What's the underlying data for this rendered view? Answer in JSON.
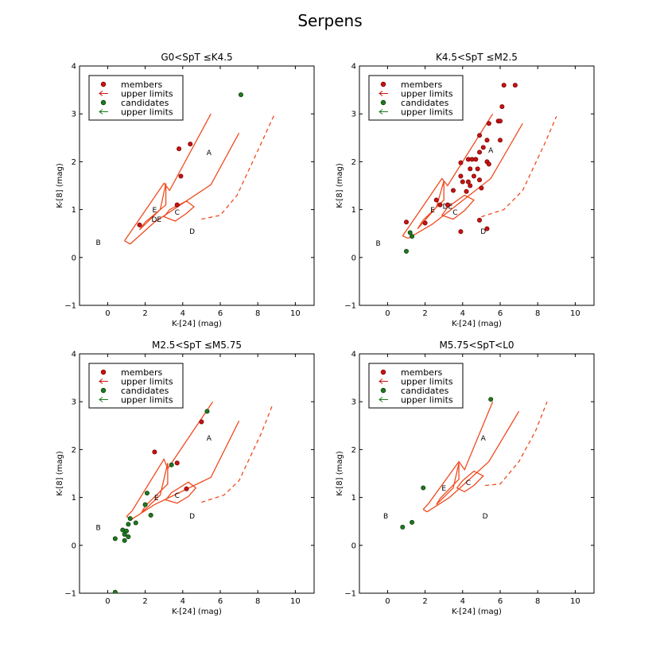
{
  "figure_title": "Serpens",
  "colors": {
    "model": "#f04a1e",
    "member": "#c81414",
    "member_edge": "#7a0000",
    "candidate": "#1e7a1e",
    "candidate_edge": "#0f3f0f"
  },
  "legend": {
    "entries": [
      "members",
      "upper limits",
      "candidates",
      "upper limits"
    ]
  },
  "chart_data": [
    {
      "type": "scatter",
      "title": "G0<SpT ≤K4.5",
      "xlabel": "K-[24] (mag)",
      "ylabel": "K-[8] (mag)",
      "xlim": [
        -1.5,
        11.0
      ],
      "ylim": [
        -1,
        4
      ],
      "xticks": [
        0,
        2,
        4,
        6,
        8,
        10
      ],
      "yticks": [
        -1,
        0,
        1,
        2,
        3,
        4
      ],
      "members": [
        [
          1.7,
          0.68
        ],
        [
          3.8,
          2.27
        ],
        [
          4.4,
          2.37
        ],
        [
          3.9,
          1.7
        ],
        [
          3.7,
          1.1
        ]
      ],
      "candidates": [
        [
          7.1,
          3.4
        ]
      ],
      "model": {
        "outer": [
          [
            0.9,
            0.35
          ],
          [
            1.2,
            0.52
          ],
          [
            3.0,
            1.55
          ],
          [
            3.3,
            1.4
          ],
          [
            5.5,
            3.0
          ]
        ],
        "inner": [
          [
            1.2,
            0.28
          ],
          [
            2.5,
            0.74
          ],
          [
            5.5,
            1.52
          ],
          [
            7.0,
            2.6
          ]
        ],
        "region_e": [
          [
            1.7,
            0.58
          ],
          [
            2.8,
            1.0
          ],
          [
            3.1,
            1.55
          ],
          [
            3.1,
            1.1
          ],
          [
            2.0,
            0.74
          ]
        ],
        "region_c": [
          [
            3.0,
            0.85
          ],
          [
            3.3,
            1.0
          ],
          [
            4.2,
            1.18
          ],
          [
            4.6,
            1.06
          ],
          [
            4.2,
            0.92
          ],
          [
            3.6,
            0.76
          ]
        ],
        "dashed": [
          [
            5.0,
            0.8
          ],
          [
            6.0,
            0.88
          ],
          [
            6.9,
            1.3
          ],
          [
            8.2,
            2.4
          ],
          [
            8.9,
            3.0
          ]
        ]
      },
      "region_labels": [
        {
          "text": "A",
          "x": 5.4,
          "y": 2.2
        },
        {
          "text": "B",
          "x": -0.5,
          "y": 0.32
        },
        {
          "text": "C",
          "x": 3.7,
          "y": 0.95
        },
        {
          "text": "D",
          "x": 4.5,
          "y": 0.55
        },
        {
          "text": "E",
          "x": 2.5,
          "y": 1.0
        },
        {
          "text": "DE",
          "x": 2.6,
          "y": 0.8
        }
      ]
    },
    {
      "type": "scatter",
      "title": "K4.5<SpT ≤M2.5",
      "xlabel": "K-[24] (mag)",
      "ylabel": "K-[8] (mag)",
      "xlim": [
        -1.5,
        11.0
      ],
      "ylim": [
        -1,
        4
      ],
      "xticks": [
        0,
        2,
        4,
        6,
        8,
        10
      ],
      "yticks": [
        -1,
        0,
        1,
        2,
        3,
        4
      ],
      "members": [
        [
          6.2,
          3.6
        ],
        [
          6.8,
          3.6
        ],
        [
          6.1,
          3.15
        ],
        [
          5.4,
          2.8
        ],
        [
          5.9,
          2.85
        ],
        [
          6.0,
          2.85
        ],
        [
          4.9,
          2.55
        ],
        [
          5.3,
          2.45
        ],
        [
          6.0,
          2.45
        ],
        [
          5.1,
          2.3
        ],
        [
          4.9,
          2.2
        ],
        [
          3.9,
          1.98
        ],
        [
          4.3,
          2.05
        ],
        [
          4.5,
          2.05
        ],
        [
          4.7,
          2.05
        ],
        [
          5.3,
          2.0
        ],
        [
          5.4,
          1.95
        ],
        [
          4.4,
          1.85
        ],
        [
          4.8,
          1.85
        ],
        [
          3.9,
          1.7
        ],
        [
          4.6,
          1.7
        ],
        [
          4.9,
          1.62
        ],
        [
          4.0,
          1.58
        ],
        [
          4.3,
          1.58
        ],
        [
          4.4,
          1.5
        ],
        [
          5.0,
          1.45
        ],
        [
          3.5,
          1.4
        ],
        [
          4.2,
          1.38
        ],
        [
          2.6,
          1.2
        ],
        [
          2.8,
          1.1
        ],
        [
          3.2,
          1.1
        ],
        [
          4.9,
          0.78
        ],
        [
          5.3,
          0.6
        ],
        [
          2.0,
          0.72
        ],
        [
          1.0,
          0.74
        ],
        [
          3.9,
          0.54
        ]
      ],
      "candidates": [
        [
          1.2,
          0.52
        ],
        [
          1.3,
          0.44
        ],
        [
          1.0,
          0.13
        ]
      ],
      "model": {
        "outer": [
          [
            0.8,
            0.45
          ],
          [
            1.1,
            0.62
          ],
          [
            2.9,
            1.65
          ],
          [
            3.2,
            1.5
          ],
          [
            5.6,
            3.0
          ]
        ],
        "inner": [
          [
            1.1,
            0.4
          ],
          [
            2.4,
            0.7
          ],
          [
            5.5,
            1.65
          ],
          [
            7.2,
            2.8
          ]
        ],
        "region_e": [
          [
            1.6,
            0.6
          ],
          [
            2.6,
            1.05
          ],
          [
            3.0,
            1.6
          ],
          [
            3.0,
            1.2
          ],
          [
            1.9,
            0.78
          ]
        ],
        "region_c": [
          [
            2.9,
            0.88
          ],
          [
            3.2,
            1.05
          ],
          [
            4.1,
            1.3
          ],
          [
            4.6,
            1.2
          ],
          [
            4.1,
            0.98
          ],
          [
            3.5,
            0.8
          ]
        ],
        "dashed": [
          [
            5.0,
            0.85
          ],
          [
            6.2,
            1.0
          ],
          [
            7.2,
            1.4
          ],
          [
            8.4,
            2.4
          ],
          [
            9.0,
            2.95
          ]
        ]
      },
      "region_labels": [
        {
          "text": "A",
          "x": 5.5,
          "y": 2.25
        },
        {
          "text": "B",
          "x": -0.5,
          "y": 0.3
        },
        {
          "text": "C",
          "x": 3.6,
          "y": 0.95
        },
        {
          "text": "D",
          "x": 5.1,
          "y": 0.55
        },
        {
          "text": "E",
          "x": 2.4,
          "y": 1.0
        },
        {
          "text": "DE",
          "x": 3.2,
          "y": 1.08
        }
      ]
    },
    {
      "type": "scatter",
      "title": "M2.5<SpT ≤M5.75",
      "xlabel": "K-[24] (mag)",
      "ylabel": "K-[8] (mag)",
      "xlim": [
        -1.5,
        11.0
      ],
      "ylim": [
        -1,
        4
      ],
      "xticks": [
        0,
        2,
        4,
        6,
        8,
        10
      ],
      "yticks": [
        -1,
        0,
        1,
        2,
        3,
        4
      ],
      "members": [
        [
          2.5,
          1.95
        ],
        [
          3.7,
          1.72
        ],
        [
          5.0,
          2.58
        ],
        [
          4.2,
          1.18
        ]
      ],
      "candidates": [
        [
          5.3,
          2.8
        ],
        [
          3.4,
          1.68
        ],
        [
          2.1,
          1.09
        ],
        [
          2.0,
          0.85
        ],
        [
          2.3,
          0.63
        ],
        [
          1.2,
          0.56
        ],
        [
          1.5,
          0.47
        ],
        [
          1.1,
          0.44
        ],
        [
          0.8,
          0.32
        ],
        [
          1.0,
          0.3
        ],
        [
          0.9,
          0.23
        ],
        [
          1.1,
          0.18
        ],
        [
          0.4,
          0.14
        ],
        [
          0.9,
          0.1
        ],
        [
          0.4,
          -0.98
        ]
      ],
      "model": {
        "outer": [
          [
            1.0,
            0.6
          ],
          [
            1.3,
            0.72
          ],
          [
            3.0,
            1.8
          ],
          [
            3.2,
            1.6
          ],
          [
            5.6,
            3.0
          ]
        ],
        "inner": [
          [
            1.3,
            0.55
          ],
          [
            2.5,
            0.85
          ],
          [
            5.5,
            1.42
          ],
          [
            7.0,
            2.6
          ]
        ],
        "region_e": [
          [
            1.8,
            0.68
          ],
          [
            2.8,
            1.05
          ],
          [
            3.2,
            1.72
          ],
          [
            3.2,
            1.28
          ],
          [
            2.0,
            0.82
          ]
        ],
        "region_c": [
          [
            3.1,
            0.95
          ],
          [
            3.4,
            1.1
          ],
          [
            4.3,
            1.32
          ],
          [
            4.7,
            1.2
          ],
          [
            4.3,
            1.02
          ],
          [
            3.7,
            0.88
          ]
        ],
        "dashed": [
          [
            5.0,
            0.9
          ],
          [
            6.2,
            1.05
          ],
          [
            7.0,
            1.35
          ],
          [
            8.2,
            2.35
          ],
          [
            8.8,
            2.95
          ]
        ]
      },
      "region_labels": [
        {
          "text": "A",
          "x": 5.4,
          "y": 2.25
        },
        {
          "text": "B",
          "x": -0.5,
          "y": 0.38
        },
        {
          "text": "C",
          "x": 3.7,
          "y": 1.05
        },
        {
          "text": "D",
          "x": 4.5,
          "y": 0.62
        },
        {
          "text": "E",
          "x": 2.6,
          "y": 1.0
        }
      ]
    },
    {
      "type": "scatter",
      "title": "M5.75<SpT<L0",
      "xlabel": "K-[24] (mag)",
      "ylabel": "K-[8] (mag)",
      "xlim": [
        -1.5,
        11.0
      ],
      "ylim": [
        -1,
        4
      ],
      "xticks": [
        0,
        2,
        4,
        6,
        8,
        10
      ],
      "yticks": [
        -1,
        0,
        1,
        2,
        3,
        4
      ],
      "members": [],
      "candidates": [
        [
          5.5,
          3.05
        ],
        [
          1.9,
          1.2
        ],
        [
          1.3,
          0.48
        ],
        [
          0.8,
          0.38
        ]
      ],
      "model": {
        "outer": [
          [
            1.9,
            0.75
          ],
          [
            2.2,
            0.88
          ],
          [
            3.8,
            1.75
          ],
          [
            4.1,
            1.58
          ],
          [
            5.6,
            3.0
          ]
        ],
        "inner": [
          [
            2.1,
            0.7
          ],
          [
            3.3,
            1.0
          ],
          [
            5.4,
            1.75
          ],
          [
            7.0,
            2.8
          ]
        ],
        "region_e": [
          [
            2.6,
            0.85
          ],
          [
            3.5,
            1.2
          ],
          [
            3.8,
            1.72
          ],
          [
            3.8,
            1.38
          ],
          [
            2.8,
            0.98
          ]
        ],
        "region_c": [
          [
            3.7,
            1.2
          ],
          [
            4.0,
            1.35
          ],
          [
            4.6,
            1.55
          ],
          [
            5.1,
            1.45
          ],
          [
            4.6,
            1.25
          ],
          [
            4.1,
            1.12
          ]
        ],
        "dashed": [
          [
            5.2,
            1.25
          ],
          [
            6.0,
            1.28
          ],
          [
            7.0,
            1.75
          ],
          [
            7.9,
            2.4
          ],
          [
            8.5,
            3.0
          ]
        ]
      },
      "region_labels": [
        {
          "text": "A",
          "x": 5.1,
          "y": 2.25
        },
        {
          "text": "B",
          "x": -0.1,
          "y": 0.62
        },
        {
          "text": "C",
          "x": 4.3,
          "y": 1.32
        },
        {
          "text": "D",
          "x": 5.2,
          "y": 0.62
        },
        {
          "text": "E",
          "x": 3.0,
          "y": 1.2
        }
      ]
    }
  ]
}
